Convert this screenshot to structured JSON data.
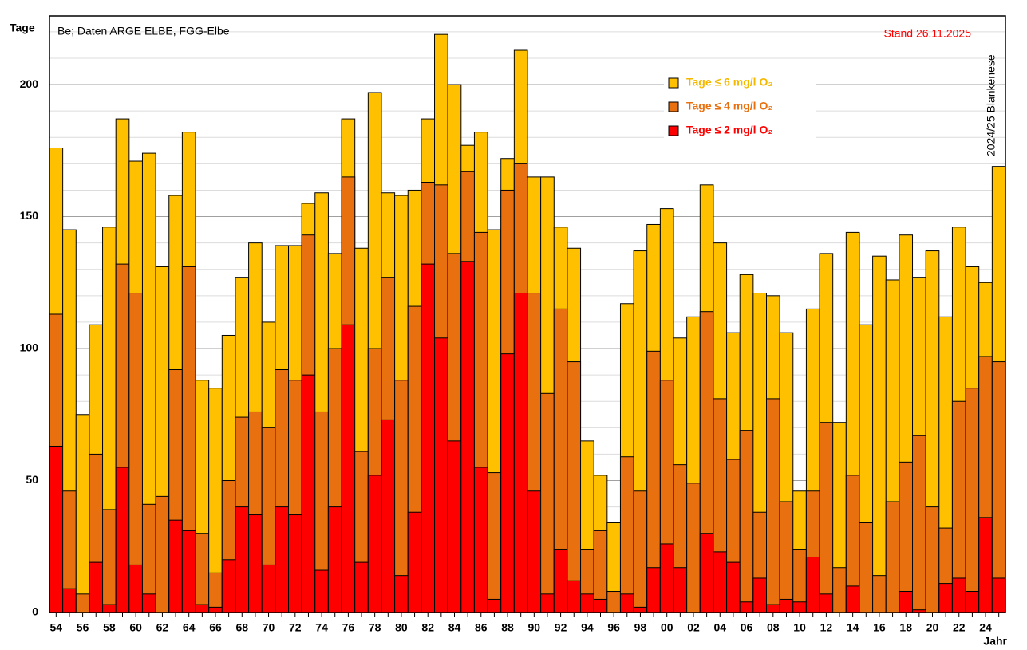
{
  "chart_data": {
    "type": "overlap_bar",
    "ylabel": "Tage",
    "xlabel": "Jahr",
    "annotation": "Be; Daten ARGE ELBE, FGG-Elbe",
    "date_note": "Stand 26.11.2025",
    "station_note": "2024/25  Blankenese",
    "categories": [
      "54",
      null,
      "56",
      null,
      "58",
      null,
      "60",
      null,
      "62",
      null,
      "64",
      null,
      "66",
      null,
      "68",
      null,
      "70",
      null,
      "72",
      null,
      "74",
      null,
      "76",
      null,
      "78",
      null,
      "80",
      null,
      "82",
      null,
      "84",
      null,
      "86",
      null,
      "88",
      null,
      "90",
      null,
      "92",
      null,
      "94",
      null,
      "96",
      null,
      "98",
      null,
      "00",
      null,
      "02",
      null,
      "04",
      null,
      "06",
      null,
      "08",
      null,
      "10",
      null,
      "12",
      null,
      "14",
      null,
      "16",
      null,
      "18",
      null,
      "20",
      null,
      "22",
      null,
      "24",
      null
    ],
    "series": [
      {
        "name": "Tage ≤ 6 mg/l O₂",
        "color": "#ffc000",
        "text_color": "#f5b800",
        "values": [
          176,
          145,
          75,
          109,
          146,
          187,
          171,
          174,
          131,
          158,
          182,
          88,
          85,
          105,
          127,
          140,
          110,
          139,
          139,
          155,
          159,
          136,
          187,
          138,
          197,
          159,
          158,
          160,
          187,
          219,
          200,
          177,
          182,
          145,
          172,
          213,
          165,
          165,
          146,
          138,
          65,
          52,
          34,
          117,
          137,
          147,
          153,
          104,
          112,
          162,
          140,
          106,
          128,
          121,
          120,
          106,
          46,
          115,
          136,
          72,
          144,
          109,
          135,
          126,
          143,
          127,
          137,
          112,
          146,
          131,
          125,
          169
        ]
      },
      {
        "name": "Tage ≤ 4 mg/l O₂",
        "color": "#e8700f",
        "text_color": "#e8700f",
        "values": [
          113,
          46,
          7,
          60,
          39,
          132,
          121,
          41,
          44,
          92,
          131,
          30,
          15,
          50,
          74,
          76,
          70,
          92,
          88,
          143,
          76,
          100,
          165,
          61,
          100,
          127,
          88,
          116,
          163,
          162,
          136,
          167,
          144,
          53,
          160,
          170,
          121,
          83,
          115,
          95,
          24,
          31,
          8,
          59,
          46,
          99,
          88,
          56,
          49,
          114,
          81,
          58,
          69,
          38,
          81,
          42,
          24,
          46,
          72,
          17,
          52,
          34,
          14,
          42,
          57,
          67,
          40,
          32,
          80,
          85,
          97,
          95
        ]
      },
      {
        "name": "Tage ≤ 2 mg/l O₂",
        "color": "#ff0000",
        "text_color": "#ff0000",
        "values": [
          63,
          9,
          0,
          19,
          3,
          55,
          18,
          7,
          0,
          35,
          31,
          3,
          2,
          20,
          40,
          37,
          18,
          40,
          37,
          90,
          16,
          40,
          109,
          19,
          52,
          73,
          14,
          38,
          132,
          104,
          65,
          133,
          55,
          5,
          98,
          121,
          46,
          7,
          24,
          12,
          7,
          5,
          0,
          7,
          2,
          17,
          26,
          17,
          0,
          30,
          23,
          19,
          4,
          13,
          3,
          5,
          4,
          21,
          7,
          0,
          10,
          0,
          0,
          0,
          8,
          1,
          0,
          11,
          13,
          8,
          36,
          13
        ]
      }
    ],
    "ylim": [
      0,
      226
    ],
    "yticks": [
      0,
      50,
      100,
      150,
      200
    ],
    "yticks_minor": [
      10,
      20,
      30,
      40,
      60,
      70,
      80,
      90,
      110,
      120,
      130,
      140,
      160,
      170,
      180,
      190,
      210,
      220
    ],
    "grid": true,
    "legend": "upper-right"
  }
}
